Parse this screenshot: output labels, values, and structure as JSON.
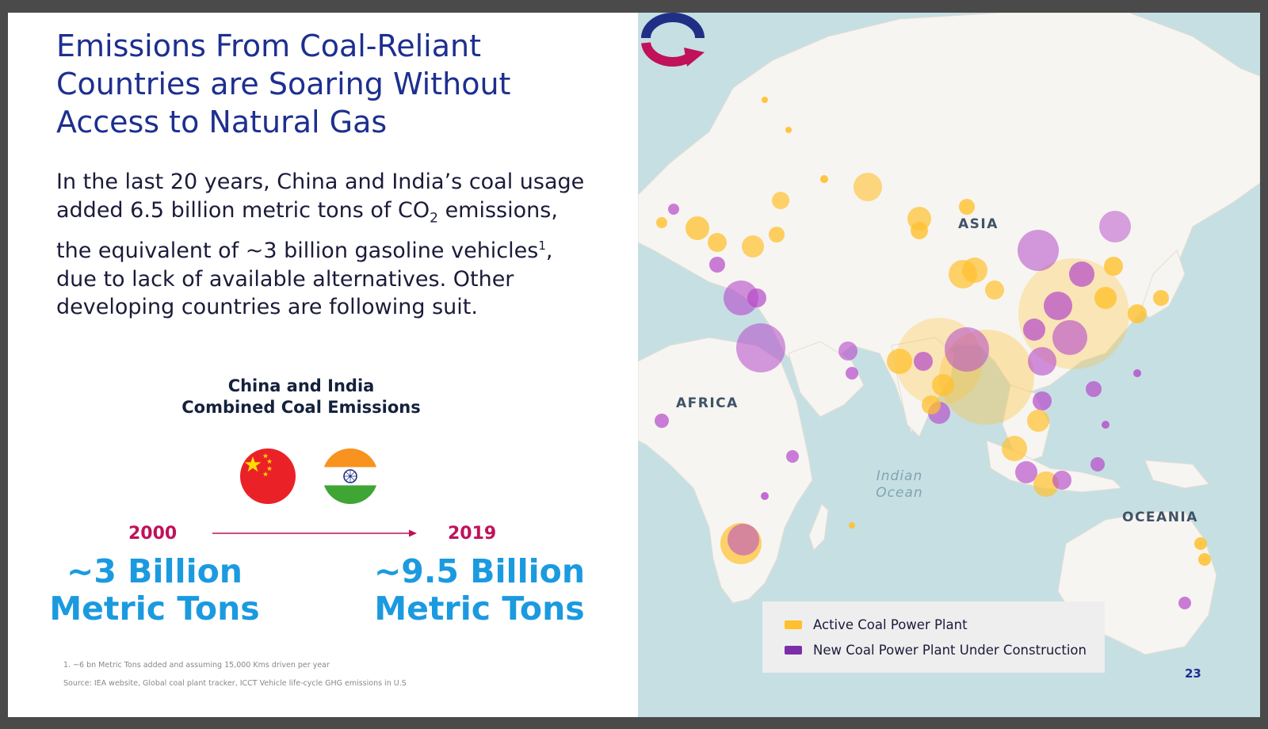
{
  "slide": {
    "title": "Emissions From Coal-Reliant Countries are Soaring Without Access to Natural Gas",
    "body_parts": {
      "a": "In the last 20 years, China and India’s coal usage added 6.5 billion metric tons of CO",
      "sub": "2",
      "b": " emissions, the equivalent of ~3 billion gasoline vehicles",
      "sup": "1",
      "c": ", due to lack of available alternatives. Other developing countries are following suit."
    },
    "chart_title_line1": "China and India",
    "chart_title_line2": "Combined Coal Emissions",
    "flags": [
      "china-flag",
      "india-flag"
    ],
    "comparison": {
      "start_year": "2000",
      "end_year": "2019",
      "start_value_line1": "~3 Billion",
      "start_value_line2": "Metric Tons",
      "end_value_line1": "~9.5 Billion",
      "end_value_line2": "Metric Tons"
    },
    "footnote": "1. ~6 bn Metric Tons added and assuming 15,000 Kms driven per year",
    "source": "Source: IEA website, Global coal plant tracker, ICCT Vehicle life-cycle GHG emissions in U.S",
    "page_number": "23"
  },
  "map": {
    "labels": {
      "asia": "ASIA",
      "africa": "AFRICA",
      "oceania": "OCEANIA",
      "ocean_line1": "Indian",
      "ocean_line2": "Ocean"
    },
    "legend": [
      {
        "label": "Active Coal Power Plant",
        "color": "#ffc02e"
      },
      {
        "label": "New Coal Power Plant Under Construction",
        "color": "#7a2fa8"
      }
    ],
    "colors": {
      "water": "#c6dfe3",
      "land": "#f7f5f1",
      "active": "#ffc02e",
      "construction": "#b548c9"
    },
    "logo": "company-logo"
  }
}
